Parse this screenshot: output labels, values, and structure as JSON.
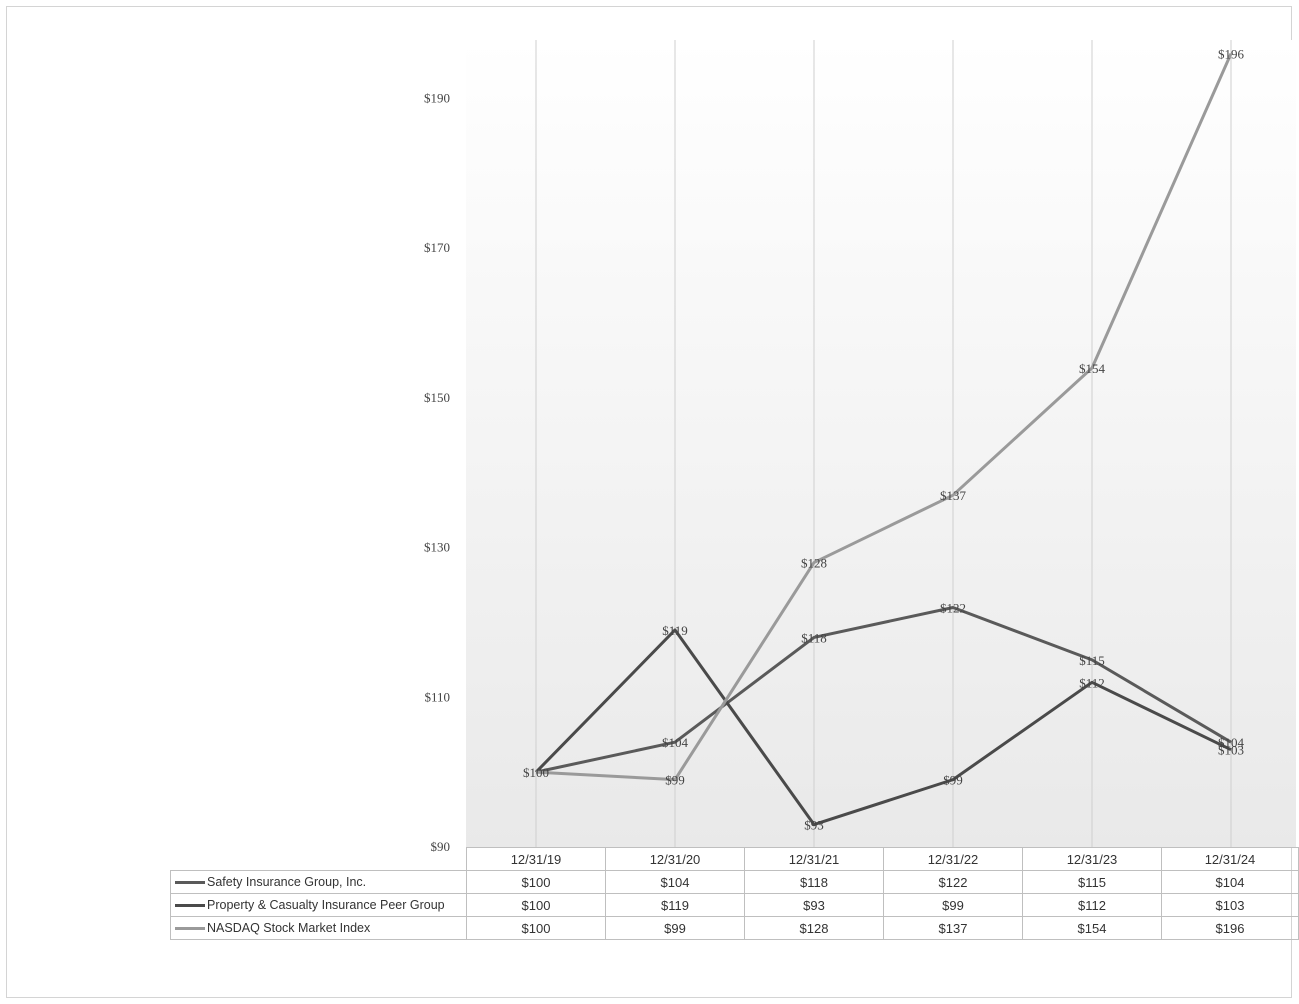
{
  "chart_data": {
    "type": "line",
    "categories": [
      "12/31/19",
      "12/31/20",
      "12/31/21",
      "12/31/22",
      "12/31/23",
      "12/31/24"
    ],
    "y_ticks": [
      "$90",
      "$110",
      "$130",
      "$150",
      "$170",
      "$190"
    ],
    "ylim": [
      90,
      197
    ],
    "grid": "vertical lines at categories",
    "legend": "data table below chart",
    "series": [
      {
        "name": "Safety Insurance Group, Inc.",
        "values": [
          100,
          104,
          118,
          122,
          115,
          104
        ],
        "labels": [
          "$100",
          "$104",
          "$118",
          "$122",
          "$115",
          "$104"
        ],
        "color": "#5a5a5a"
      },
      {
        "name": "Property & Casualty Insurance Peer Group",
        "values": [
          100,
          119,
          93,
          99,
          112,
          103
        ],
        "labels": [
          "$100",
          "$119",
          "$93",
          "$99",
          "$112",
          "$103"
        ],
        "color": "#4a4a4a"
      },
      {
        "name": "NASDAQ Stock Market Index",
        "values": [
          100,
          99,
          128,
          137,
          154,
          196
        ],
        "labels": [
          "$100",
          "$99",
          "$128",
          "$137",
          "$154",
          "$196"
        ],
        "color": "#9a9a9a"
      }
    ]
  }
}
